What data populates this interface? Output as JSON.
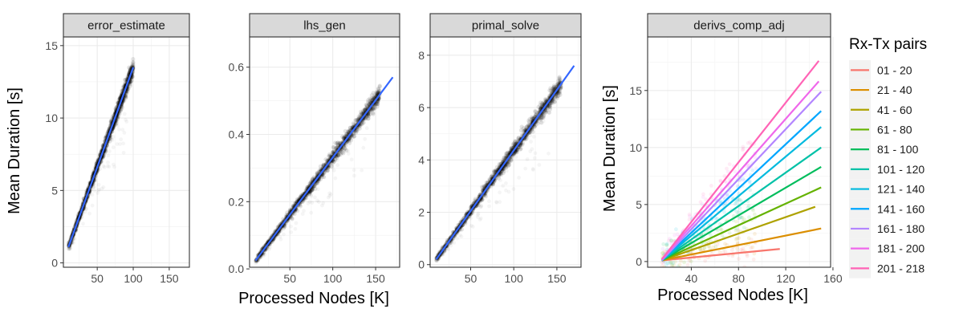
{
  "chart_data": [
    {
      "type": "scatter",
      "strip": "error_estimate",
      "xlim": [
        3,
        178
      ],
      "ylim": [
        -0.3,
        15.6
      ],
      "xticks": [
        50,
        100,
        150
      ],
      "yticks": [
        0,
        5,
        10,
        15
      ],
      "ytick_labels": [
        "0",
        "5",
        "10",
        "15"
      ],
      "points_x_range": [
        10,
        100
      ],
      "fit": {
        "x": [
          10,
          100
        ],
        "y": [
          1.1,
          13.5
        ]
      },
      "fit_color": "#3366FF"
    },
    {
      "type": "scatter",
      "strip": "lhs_gen",
      "xlim": [
        3,
        178
      ],
      "ylim": [
        0.005,
        0.69
      ],
      "xticks": [
        50,
        100,
        150
      ],
      "yticks": [
        0.0,
        0.2,
        0.4,
        0.6
      ],
      "ytick_labels": [
        "0.0",
        "0.2",
        "0.4",
        "0.6"
      ],
      "points_x_range": [
        10,
        155
      ],
      "fit": {
        "x": [
          10,
          170
        ],
        "y": [
          0.025,
          0.57
        ]
      },
      "fit_color": "#3366FF"
    },
    {
      "type": "scatter",
      "strip": "primal_solve",
      "xlim": [
        3,
        178
      ],
      "ylim": [
        -0.1,
        8.7
      ],
      "xticks": [
        50,
        100,
        150
      ],
      "yticks": [
        0,
        2,
        4,
        6,
        8
      ],
      "ytick_labels": [
        "0",
        "2",
        "4",
        "6",
        "8"
      ],
      "points_x_range": [
        10,
        155
      ],
      "fit": {
        "x": [
          10,
          170
        ],
        "y": [
          0.2,
          7.6
        ]
      },
      "fit_color": "#3366FF"
    },
    {
      "type": "line",
      "strip": "derivs_comp_adj",
      "xlim": [
        3,
        158
      ],
      "ylim": [
        -0.5,
        19.7
      ],
      "xticks": [
        40,
        80,
        120,
        160
      ],
      "yticks": [
        0,
        5,
        10,
        15
      ],
      "ytick_labels": [
        "0",
        "5",
        "10",
        "15"
      ],
      "xlabel": "Processed Nodes [K]",
      "ylabel": "Mean Duration [s]",
      "series": [
        {
          "name": "01 - 20",
          "color": "#F8766D",
          "x": [
            15,
            115
          ],
          "y": [
            0.1,
            1.1
          ]
        },
        {
          "name": "21 - 40",
          "color": "#DB8E00",
          "x": [
            15,
            150
          ],
          "y": [
            0.1,
            2.9
          ]
        },
        {
          "name": "41 - 60",
          "color": "#AEA200",
          "x": [
            15,
            145
          ],
          "y": [
            0.1,
            4.8
          ]
        },
        {
          "name": "61 - 80",
          "color": "#64B200",
          "x": [
            15,
            150
          ],
          "y": [
            0.1,
            6.5
          ]
        },
        {
          "name": "81 - 100",
          "color": "#00BD5C",
          "x": [
            15,
            150
          ],
          "y": [
            0.1,
            8.3
          ]
        },
        {
          "name": "101 - 120",
          "color": "#00C1A7",
          "x": [
            15,
            150
          ],
          "y": [
            0.1,
            10.0
          ]
        },
        {
          "name": "121 - 140",
          "color": "#00BADE",
          "x": [
            15,
            150
          ],
          "y": [
            0.1,
            11.8
          ]
        },
        {
          "name": "141 - 160",
          "color": "#00A6FF",
          "x": [
            15,
            150
          ],
          "y": [
            0.1,
            13.2
          ]
        },
        {
          "name": "161 - 180",
          "color": "#B385FF",
          "x": [
            15,
            150
          ],
          "y": [
            0.1,
            14.9
          ]
        },
        {
          "name": "181 - 200",
          "color": "#EF67EB",
          "x": [
            15,
            148
          ],
          "y": [
            0.2,
            15.8
          ]
        },
        {
          "name": "201 - 218",
          "color": "#FF63B6",
          "x": [
            15,
            148
          ],
          "y": [
            0.2,
            17.6
          ]
        }
      ]
    }
  ],
  "figure": {
    "xlabel": "Processed Nodes [K]",
    "ylabel": "Mean Duration [s]",
    "legend": {
      "title": "Rx-Tx pairs",
      "placement": "right"
    }
  }
}
